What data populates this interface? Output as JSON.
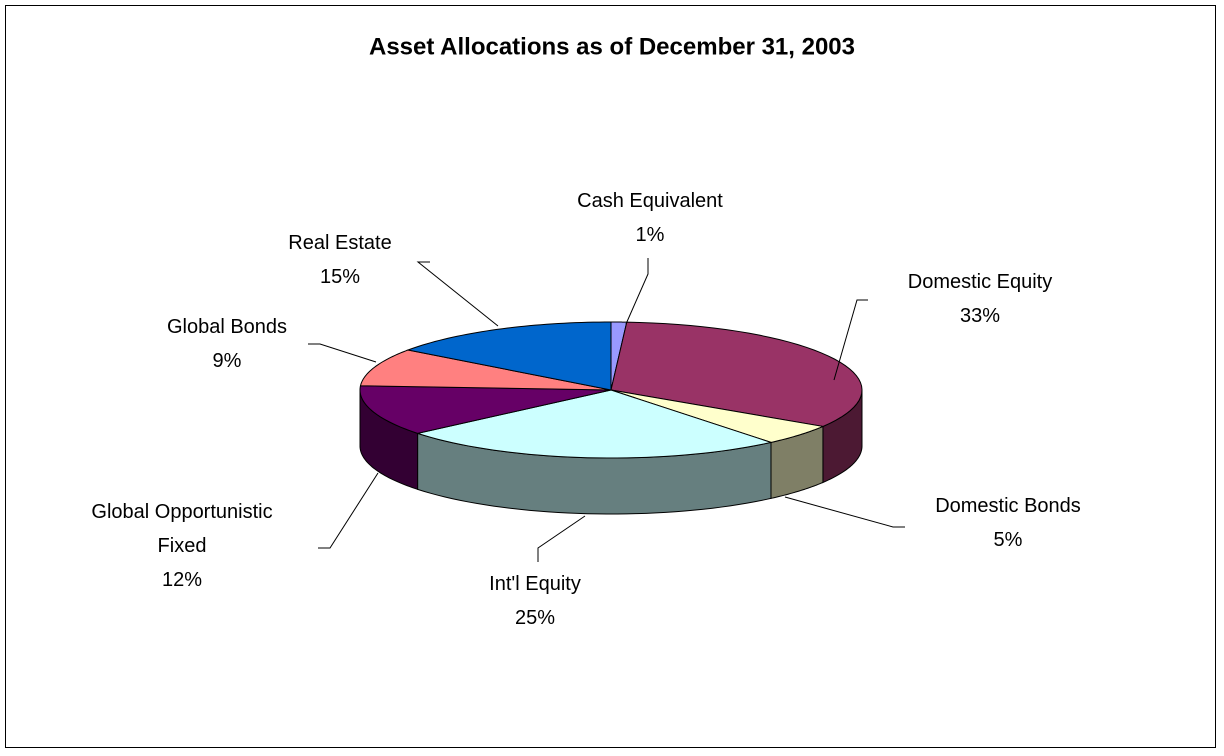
{
  "chart_data": {
    "type": "pie",
    "title": "Asset Allocations as of December 31, 2003",
    "categories": [
      "Cash Equivalent",
      "Domestic Equity",
      "Domestic Bonds",
      "Int'l Equity",
      "Global Opportunistic Fixed",
      "Global Bonds",
      "Real Estate"
    ],
    "values": [
      1,
      33,
      5,
      25,
      12,
      9,
      15
    ],
    "value_labels": [
      "1%",
      "33%",
      "5%",
      "25%",
      "12%",
      "9%",
      "15%"
    ],
    "colors": [
      "#9999ff",
      "#993366",
      "#ffffcc",
      "#ccffff",
      "#660066",
      "#ff8080",
      "#0066cc"
    ]
  }
}
